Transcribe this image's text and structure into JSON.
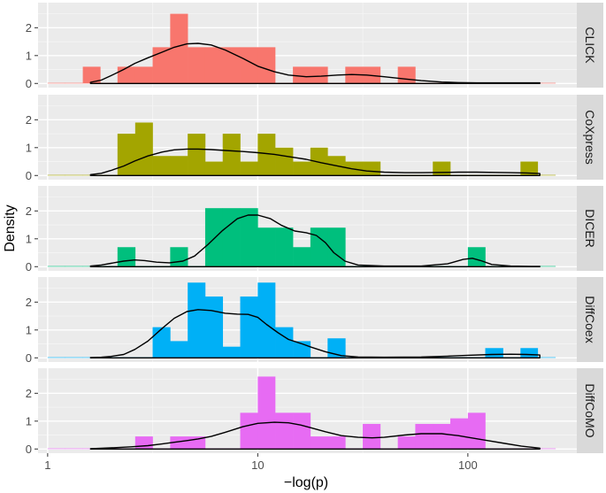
{
  "chart_data": {
    "type": "histogram+density",
    "xlabel": "−log(p)",
    "ylabel": "Density",
    "x_scale": "log10",
    "xlim": [
      0.9,
      330
    ],
    "ylim": [
      -0.15,
      2.9
    ],
    "x_ticks": [
      1,
      10,
      100
    ],
    "x_tick_labels": [
      "1",
      "10",
      "100"
    ],
    "y_ticks": [
      0,
      1,
      2
    ],
    "y_tick_labels": [
      "0",
      "1",
      "2"
    ],
    "bin_edges": [
      1.0,
      1.21,
      1.47,
      1.78,
      2.15,
      2.61,
      3.16,
      3.83,
      4.64,
      5.62,
      6.81,
      8.25,
      10.0,
      12.1,
      14.7,
      17.8,
      21.5,
      26.1,
      31.6,
      38.3,
      46.4,
      56.2,
      68.1,
      82.5,
      100,
      121,
      147,
      178,
      215,
      261
    ],
    "facets": [
      {
        "name": "CLICK",
        "color": "#F8766D",
        "counts": [
          0,
          0,
          0.6,
          0,
          0.6,
          0.6,
          1.3,
          2.5,
          1.3,
          1.3,
          1.3,
          1.3,
          1.3,
          0,
          0.6,
          0.6,
          0,
          0.6,
          0.6,
          0,
          0.6,
          0,
          0,
          0,
          0,
          0,
          0,
          0,
          0
        ],
        "density": {
          "x": [
            1.6,
            1.8,
            2.0,
            2.3,
            2.6,
            3.0,
            3.5,
            4.0,
            4.6,
            5.2,
            6.0,
            7.0,
            8.5,
            10,
            12,
            14,
            17,
            20,
            24,
            28,
            33,
            40,
            50,
            60,
            75,
            90,
            110,
            135,
            160,
            190,
            220
          ],
          "y": [
            0.04,
            0.12,
            0.28,
            0.5,
            0.72,
            0.92,
            1.12,
            1.3,
            1.42,
            1.44,
            1.38,
            1.2,
            0.9,
            0.62,
            0.42,
            0.3,
            0.24,
            0.26,
            0.3,
            0.32,
            0.3,
            0.24,
            0.16,
            0.1,
            0.05,
            0.03,
            0.02,
            0.02,
            0.02,
            0.02,
            0.02
          ]
        }
      },
      {
        "name": "CoXpress",
        "color": "#A3A500",
        "counts": [
          0,
          0,
          0,
          0,
          1.5,
          1.9,
          0.7,
          0.7,
          1.5,
          0.5,
          1.5,
          0.5,
          1.5,
          1.0,
          0.5,
          1.0,
          0.7,
          0.5,
          0.5,
          0,
          0,
          0,
          0.5,
          0,
          0,
          0,
          0,
          0.5,
          0
        ],
        "density": {
          "x": [
            1.6,
            1.8,
            2.0,
            2.3,
            2.6,
            3.0,
            3.5,
            4.0,
            4.6,
            5.2,
            6.0,
            7.0,
            8.5,
            10,
            12,
            14,
            17,
            20,
            24,
            28,
            33,
            40,
            50,
            60,
            75,
            90,
            110,
            135,
            160,
            190,
            220
          ],
          "y": [
            0.03,
            0.08,
            0.18,
            0.34,
            0.52,
            0.7,
            0.84,
            0.92,
            0.95,
            0.95,
            0.93,
            0.9,
            0.86,
            0.82,
            0.76,
            0.68,
            0.58,
            0.46,
            0.34,
            0.24,
            0.16,
            0.12,
            0.1,
            0.1,
            0.11,
            0.12,
            0.12,
            0.11,
            0.1,
            0.09,
            0.07
          ]
        }
      },
      {
        "name": "DICER",
        "color": "#00BF7D",
        "counts": [
          0,
          0,
          0,
          0,
          0.7,
          0,
          0,
          0.7,
          0,
          2.1,
          2.1,
          2.1,
          1.4,
          1.4,
          0.7,
          1.4,
          1.4,
          0,
          0,
          0,
          0,
          0,
          0,
          0,
          0.7,
          0,
          0,
          0,
          0
        ],
        "density": {
          "x": [
            1.6,
            1.8,
            2.0,
            2.3,
            2.6,
            2.9,
            3.3,
            3.8,
            4.4,
            5.0,
            5.8,
            6.8,
            8.0,
            9.0,
            10,
            11.5,
            13,
            15,
            17,
            19,
            21,
            23,
            26,
            30,
            40,
            60,
            80,
            95,
            105,
            115,
            130,
            160,
            200,
            220
          ],
          "y": [
            0.02,
            0.06,
            0.12,
            0.2,
            0.24,
            0.22,
            0.16,
            0.14,
            0.2,
            0.38,
            0.8,
            1.3,
            1.72,
            1.85,
            1.85,
            1.72,
            1.48,
            1.28,
            1.22,
            1.12,
            0.86,
            0.5,
            0.2,
            0.06,
            0.02,
            0.02,
            0.1,
            0.26,
            0.3,
            0.22,
            0.08,
            0.02,
            0.01,
            0.01
          ]
        }
      },
      {
        "name": "DiffCoex",
        "color": "#00B0F6",
        "counts": [
          0,
          0,
          0,
          0,
          0,
          0,
          1.1,
          0.6,
          2.7,
          2.2,
          0.4,
          2.2,
          2.7,
          1.1,
          0.6,
          0,
          0.7,
          0,
          0,
          0,
          0,
          0,
          0,
          0,
          0,
          0.35,
          0,
          0.35,
          0
        ],
        "density": {
          "x": [
            1.6,
            1.8,
            2.0,
            2.3,
            2.6,
            3.0,
            3.5,
            4.0,
            4.6,
            5.2,
            6.0,
            7.0,
            8.0,
            9.0,
            10,
            11,
            12.5,
            14,
            16,
            18,
            21,
            25,
            30,
            40,
            60,
            80,
            100,
            130,
            160,
            190,
            220
          ],
          "y": [
            0.01,
            0.02,
            0.05,
            0.12,
            0.3,
            0.6,
            1.05,
            1.42,
            1.66,
            1.73,
            1.7,
            1.6,
            1.57,
            1.56,
            1.45,
            1.2,
            0.9,
            0.66,
            0.52,
            0.38,
            0.22,
            0.08,
            0.03,
            0.02,
            0.03,
            0.06,
            0.09,
            0.12,
            0.13,
            0.12,
            0.1
          ]
        }
      },
      {
        "name": "DiffCoMO",
        "color": "#E76BF3",
        "counts": [
          0,
          0,
          0,
          0,
          0,
          0.45,
          0,
          0.45,
          0.45,
          0,
          0,
          1.3,
          2.6,
          1.3,
          1.3,
          0.45,
          0.45,
          0,
          0.9,
          0,
          0.45,
          0.9,
          0.9,
          1.1,
          1.3,
          0,
          0,
          0,
          0
        ],
        "density": {
          "x": [
            1.6,
            2.0,
            2.5,
            3.0,
            3.5,
            4.0,
            4.6,
            5.2,
            6.0,
            7.0,
            8.5,
            10,
            12,
            14,
            16,
            18,
            21,
            25,
            30,
            35,
            40,
            50,
            60,
            75,
            90,
            100,
            120,
            150,
            180,
            220
          ],
          "y": [
            0.01,
            0.04,
            0.08,
            0.12,
            0.18,
            0.24,
            0.3,
            0.36,
            0.45,
            0.6,
            0.8,
            0.92,
            0.96,
            0.94,
            0.86,
            0.76,
            0.62,
            0.48,
            0.42,
            0.4,
            0.42,
            0.5,
            0.55,
            0.55,
            0.48,
            0.42,
            0.32,
            0.2,
            0.1,
            0.03
          ]
        }
      }
    ]
  }
}
